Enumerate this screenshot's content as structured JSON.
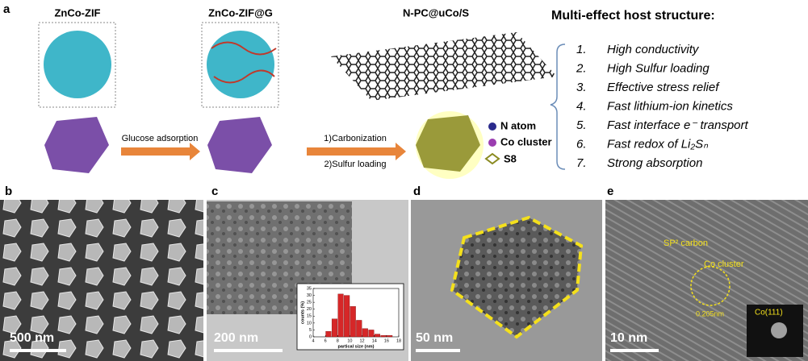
{
  "panel_a": {
    "label": "a",
    "titles": [
      "ZnCo-ZIF",
      "ZnCo-ZIF@G",
      "N-PC@uCo/S"
    ],
    "arrow_1": "Glucose adsorption",
    "arrow_2a": "1)Carbonization",
    "arrow_2b": "2)Sulfur loading",
    "legend": [
      "N atom",
      "Co cluster",
      "S8"
    ],
    "host_title": "Multi-effect host structure:",
    "properties": [
      {
        "number": "1.",
        "text": "High conductivity"
      },
      {
        "number": "2.",
        "text": "High Sulfur loading"
      },
      {
        "number": "3.",
        "text": "Effective stress relief"
      },
      {
        "number": "4.",
        "text": "Fast lithium-ion kinetics"
      },
      {
        "number": "5.",
        "text": "Fast interface e⁻ transport"
      },
      {
        "number": "6.",
        "text": "Fast redox of Li₂Sₙ"
      },
      {
        "number": "7.",
        "text": "Strong absorption"
      }
    ]
  },
  "panels": [
    {
      "label": "b",
      "scale_bar": "500 nm"
    },
    {
      "label": "c",
      "scale_bar": "200 nm"
    },
    {
      "label": "d",
      "scale_bar": "50 nm"
    },
    {
      "label": "e",
      "scale_bar": "10 nm"
    }
  ],
  "panel_e_annotations": [
    "SP² carbon",
    "Co cluster",
    "0.205nm",
    "Co(111)"
  ],
  "chart_data": {
    "type": "histogram",
    "xlabel": "partical size (nm)",
    "ylabel": "counts (%)",
    "bins": [
      6,
      7,
      8,
      9,
      10,
      11,
      12,
      13,
      14,
      15,
      16,
      17
    ],
    "values": [
      4,
      13,
      31,
      30,
      22,
      12,
      6,
      5,
      2,
      1,
      1
    ],
    "color": "#d62728",
    "xlim": [
      4,
      18
    ],
    "xticks": [
      4,
      6,
      8,
      10,
      12,
      14,
      16,
      18
    ],
    "ylim": [
      0,
      35
    ],
    "yticks": [
      0,
      5,
      10,
      15,
      20,
      25,
      30,
      35
    ]
  }
}
